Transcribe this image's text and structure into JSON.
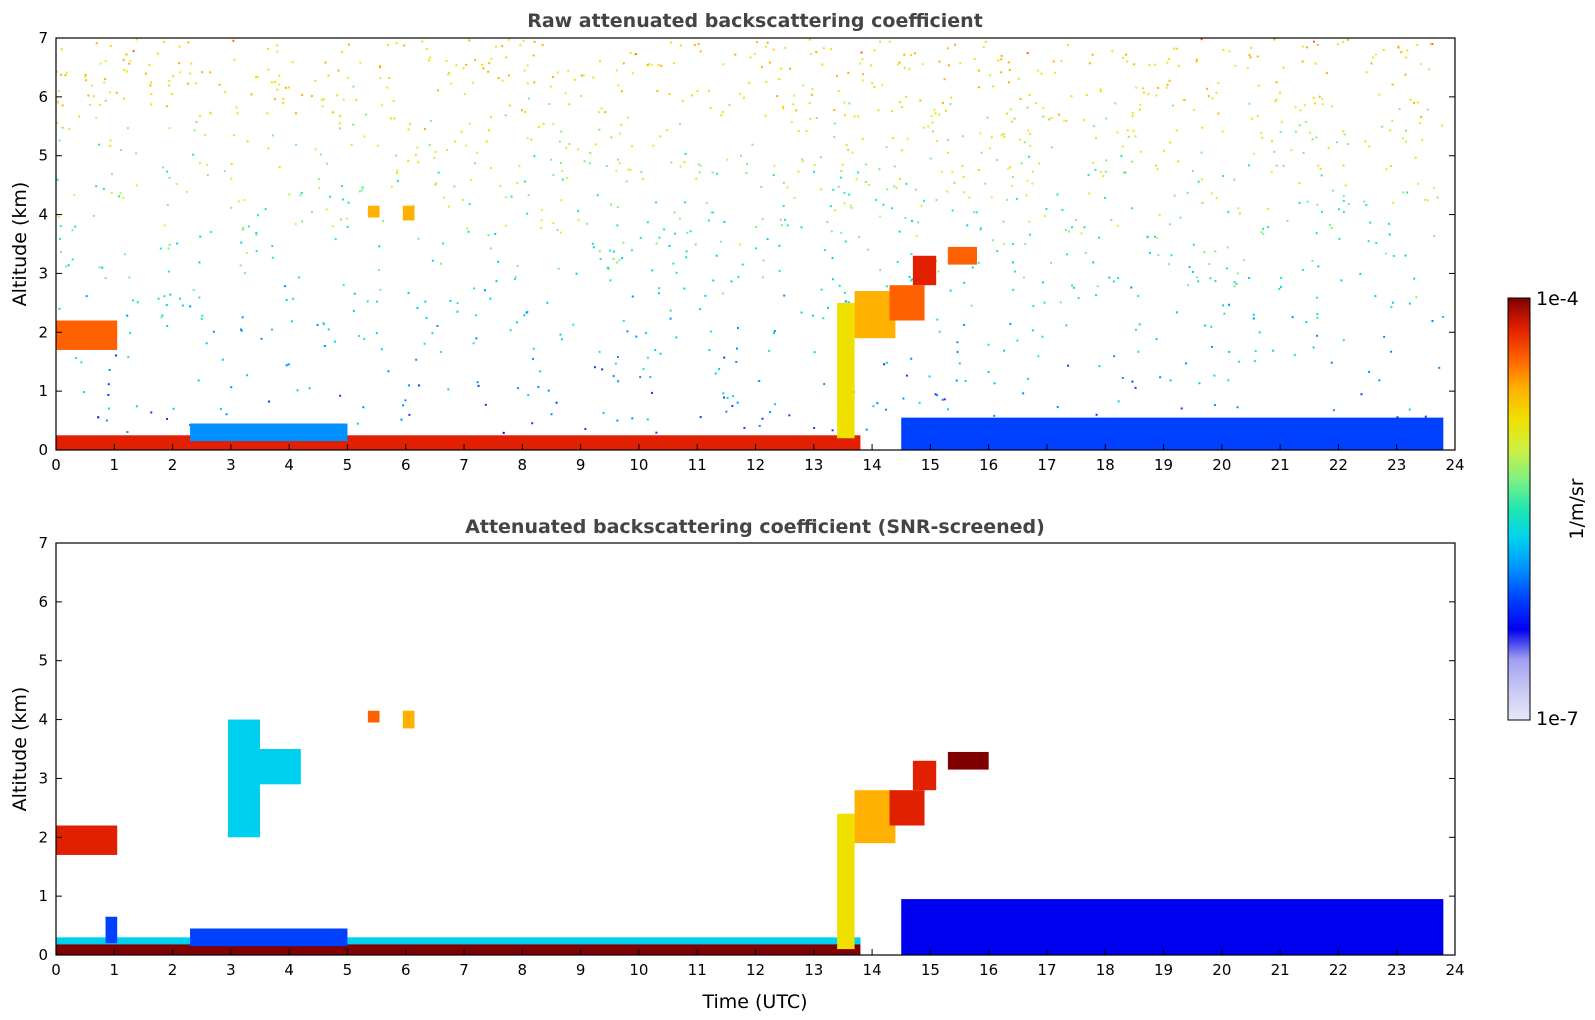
{
  "chart_data": [
    {
      "type": "heatmap",
      "title": "Raw attenuated backscattering coefficient",
      "xlabel": "",
      "ylabel": "Altitude (km)",
      "xlim": [
        0,
        24
      ],
      "ylim": [
        0,
        7
      ],
      "xticks": [
        "0",
        "1",
        "2",
        "3",
        "4",
        "5",
        "6",
        "7",
        "8",
        "9",
        "10",
        "11",
        "12",
        "13",
        "14",
        "15",
        "16",
        "17",
        "18",
        "19",
        "20",
        "21",
        "22",
        "23",
        "24"
      ],
      "yticks": [
        "0",
        "1",
        "2",
        "3",
        "4",
        "5",
        "6",
        "7"
      ],
      "layers": [
        {
          "feature": "surface layer",
          "x": [
            0,
            13.8
          ],
          "y": [
            0.0,
            0.25
          ],
          "level": 0.9
        },
        {
          "feature": "boundary layer",
          "x": [
            2.3,
            5.0
          ],
          "y": [
            0.15,
            0.45
          ],
          "level": 0.35
        },
        {
          "feature": "cloud",
          "x": [
            0,
            1.05
          ],
          "y": [
            1.7,
            2.2
          ],
          "level": 0.85
        },
        {
          "feature": "cloud",
          "x": [
            5.35,
            5.55
          ],
          "y": [
            3.95,
            4.15
          ],
          "level": 0.8
        },
        {
          "feature": "cloud",
          "x": [
            5.95,
            6.15
          ],
          "y": [
            3.9,
            4.15
          ],
          "level": 0.75
        },
        {
          "feature": "cloud",
          "x": [
            13.4,
            13.7
          ],
          "y": [
            0.2,
            2.5
          ],
          "level": 0.7
        },
        {
          "feature": "cloud",
          "x": [
            13.7,
            14.4
          ],
          "y": [
            1.9,
            2.7
          ],
          "level": 0.8
        },
        {
          "feature": "cloud",
          "x": [
            14.3,
            14.9
          ],
          "y": [
            2.2,
            2.8
          ],
          "level": 0.85
        },
        {
          "feature": "cloud",
          "x": [
            14.7,
            15.1
          ],
          "y": [
            2.8,
            3.3
          ],
          "level": 0.9
        },
        {
          "feature": "cloud",
          "x": [
            15.3,
            15.8
          ],
          "y": [
            3.15,
            3.45
          ],
          "level": 0.85
        },
        {
          "feature": "boundary layer",
          "x": [
            14.5,
            23.8
          ],
          "y": [
            0.0,
            0.55
          ],
          "level": 0.25
        }
      ],
      "noise_note": "background noise increasing with altitude and from 13:30 UTC onward"
    },
    {
      "type": "heatmap",
      "title": "Attenuated backscattering coefficient (SNR-screened)",
      "xlabel": "Time (UTC)",
      "ylabel": "Altitude (km)",
      "xlim": [
        0,
        24
      ],
      "ylim": [
        0,
        7
      ],
      "xticks": [
        "0",
        "1",
        "2",
        "3",
        "4",
        "5",
        "6",
        "7",
        "8",
        "9",
        "10",
        "11",
        "12",
        "13",
        "14",
        "15",
        "16",
        "17",
        "18",
        "19",
        "20",
        "21",
        "22",
        "23",
        "24"
      ],
      "yticks": [
        "0",
        "1",
        "2",
        "3",
        "4",
        "5",
        "6",
        "7"
      ],
      "layers": [
        {
          "feature": "surface layer",
          "x": [
            0,
            13.8
          ],
          "y": [
            0.0,
            0.22
          ],
          "level": 1.0
        },
        {
          "feature": "boundary layer",
          "x": [
            0,
            13.8
          ],
          "y": [
            0.18,
            0.3
          ],
          "level": 0.4
        },
        {
          "feature": "boundary layer",
          "x": [
            2.3,
            5.0
          ],
          "y": [
            0.15,
            0.45
          ],
          "level": 0.3
        },
        {
          "feature": "aerosol plume",
          "x": [
            0.85,
            1.05
          ],
          "y": [
            0.2,
            0.65
          ],
          "level": 0.3
        },
        {
          "feature": "cloud",
          "x": [
            0,
            1.05
          ],
          "y": [
            1.7,
            2.2
          ],
          "level": 0.9
        },
        {
          "feature": "aerosol layer",
          "x": [
            2.95,
            3.5
          ],
          "y": [
            2.0,
            4.0
          ],
          "level": 0.45
        },
        {
          "feature": "aerosol layer",
          "x": [
            3.5,
            4.2
          ],
          "y": [
            2.9,
            3.5
          ],
          "level": 0.45
        },
        {
          "feature": "cloud",
          "x": [
            5.35,
            5.55
          ],
          "y": [
            3.95,
            4.15
          ],
          "level": 0.85
        },
        {
          "feature": "cloud",
          "x": [
            5.95,
            6.15
          ],
          "y": [
            3.85,
            4.15
          ],
          "level": 0.8
        },
        {
          "feature": "cloud",
          "x": [
            13.4,
            13.7
          ],
          "y": [
            0.1,
            2.4
          ],
          "level": 0.7
        },
        {
          "feature": "cloud",
          "x": [
            13.7,
            14.4
          ],
          "y": [
            1.9,
            2.8
          ],
          "level": 0.8
        },
        {
          "feature": "cloud",
          "x": [
            14.3,
            14.9
          ],
          "y": [
            2.2,
            2.8
          ],
          "level": 0.9
        },
        {
          "feature": "cloud",
          "x": [
            14.7,
            15.1
          ],
          "y": [
            2.8,
            3.3
          ],
          "level": 0.95
        },
        {
          "feature": "cloud",
          "x": [
            15.3,
            16.0
          ],
          "y": [
            3.15,
            3.45
          ],
          "level": 1.0
        },
        {
          "feature": "boundary layer",
          "x": [
            14.5,
            23.8
          ],
          "y": [
            0.0,
            0.95
          ],
          "level": 0.2
        }
      ]
    }
  ],
  "colorbar": {
    "label": "1/m/sr",
    "max_label": "1e-4",
    "min_label": "1e-7",
    "colors": [
      "#e8e8f8",
      "#c8c8f4",
      "#a0a0f0",
      "#0000f0",
      "#0040ff",
      "#0090ff",
      "#00d0f0",
      "#20e8b0",
      "#80f080",
      "#d0f040",
      "#f0e000",
      "#ffb000",
      "#ff6000",
      "#e02000",
      "#800000"
    ]
  }
}
